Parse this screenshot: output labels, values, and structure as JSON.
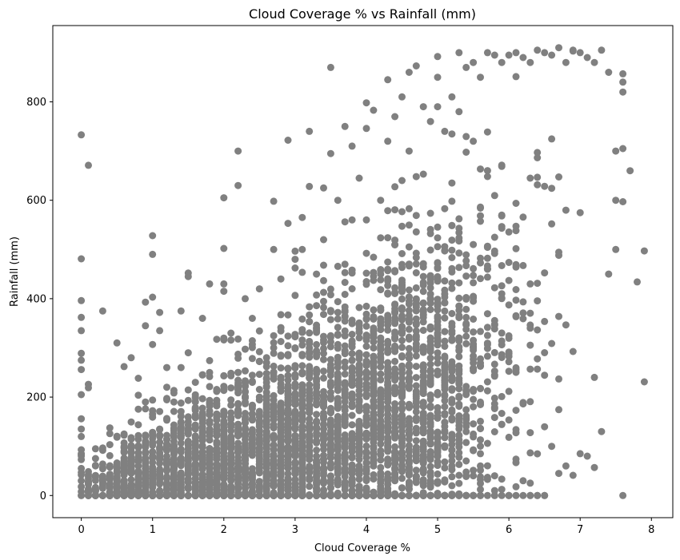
{
  "chart_data": {
    "type": "scatter",
    "title": "Cloud Coverage % vs Rainfall (mm)",
    "xlabel": "Cloud Coverage %",
    "ylabel": "Rainfall (mm)",
    "xlim": [
      -0.4,
      8.3
    ],
    "ylim": [
      -45,
      955
    ],
    "xticks": [
      0,
      1,
      2,
      3,
      4,
      5,
      6,
      7,
      8
    ],
    "yticks": [
      0,
      200,
      400,
      600,
      800
    ],
    "point_color": "#808080",
    "grid": false,
    "series": [
      {
        "points": [
          [
            0,
            733
          ],
          [
            0.1,
            671
          ],
          [
            0,
            481
          ],
          [
            0,
            396
          ],
          [
            0,
            362
          ],
          [
            0,
            335
          ],
          [
            0,
            289
          ],
          [
            0,
            275
          ],
          [
            0,
            256
          ],
          [
            0.1,
            226
          ],
          [
            0.1,
            219
          ],
          [
            0,
            205
          ],
          [
            0,
            156
          ],
          [
            0,
            135
          ],
          [
            0,
            120
          ],
          [
            0,
            93
          ],
          [
            0,
            83
          ],
          [
            0,
            73
          ],
          [
            0,
            55
          ],
          [
            0,
            42
          ],
          [
            0,
            30
          ],
          [
            0,
            18
          ],
          [
            0,
            8
          ],
          [
            0,
            0
          ],
          [
            0.1,
            0
          ],
          [
            0.2,
            10
          ],
          [
            0.3,
            0
          ],
          [
            0.3,
            27
          ],
          [
            0.3,
            375
          ],
          [
            0.4,
            33
          ],
          [
            0.5,
            310
          ],
          [
            0.5,
            18
          ],
          [
            0.6,
            262
          ],
          [
            0.6,
            90
          ],
          [
            0.6,
            50
          ],
          [
            0.7,
            280
          ],
          [
            0.7,
            10
          ],
          [
            0.8,
            100
          ],
          [
            0.8,
            60
          ],
          [
            0.9,
            190
          ],
          [
            0.9,
            120
          ],
          [
            0.9,
            0
          ],
          [
            0.9,
            345
          ],
          [
            0.9,
            393
          ],
          [
            1,
            490
          ],
          [
            1,
            528
          ],
          [
            1,
            403
          ],
          [
            1,
            307
          ],
          [
            1,
            165
          ],
          [
            1,
            80
          ],
          [
            1,
            30
          ],
          [
            1.1,
            372
          ],
          [
            1.1,
            335
          ],
          [
            1.1,
            120
          ],
          [
            1.2,
            260
          ],
          [
            1.2,
            50
          ],
          [
            1.3,
            190
          ],
          [
            1.3,
            100
          ],
          [
            1.4,
            375
          ],
          [
            1.4,
            260
          ],
          [
            1.4,
            20
          ],
          [
            1.5,
            445
          ],
          [
            1.5,
            452
          ],
          [
            1.5,
            290
          ],
          [
            1.5,
            150
          ],
          [
            1.6,
            230
          ],
          [
            1.7,
            360
          ],
          [
            1.7,
            80
          ],
          [
            1.8,
            430
          ],
          [
            1.8,
            250
          ],
          [
            1.9,
            165
          ],
          [
            1.9,
            40
          ],
          [
            2,
            605
          ],
          [
            2,
            502
          ],
          [
            2,
            430
          ],
          [
            2,
            415
          ],
          [
            2,
            320
          ],
          [
            2,
            150
          ],
          [
            2,
            60
          ],
          [
            2.1,
            330
          ],
          [
            2.2,
            700
          ],
          [
            2.2,
            630
          ],
          [
            2.2,
            250
          ],
          [
            2.3,
            400
          ],
          [
            2.3,
            120
          ],
          [
            2.4,
            360
          ],
          [
            2.5,
            420
          ],
          [
            2.5,
            200
          ],
          [
            2.6,
            280
          ],
          [
            2.7,
            598
          ],
          [
            2.7,
            500
          ],
          [
            2.8,
            440
          ],
          [
            2.9,
            553
          ],
          [
            2.9,
            722
          ],
          [
            3,
            480
          ],
          [
            3,
            300
          ],
          [
            3,
            100
          ],
          [
            3.1,
            565
          ],
          [
            3.1,
            500
          ],
          [
            3.2,
            628
          ],
          [
            3.2,
            740
          ],
          [
            3.3,
            450
          ],
          [
            3.4,
            625
          ],
          [
            3.4,
            520
          ],
          [
            3.5,
            695
          ],
          [
            3.5,
            870
          ],
          [
            3.6,
            600
          ],
          [
            3.7,
            750
          ],
          [
            3.7,
            470
          ],
          [
            3.8,
            710
          ],
          [
            3.8,
            560
          ],
          [
            3.9,
            645
          ],
          [
            4,
            798
          ],
          [
            4,
            560
          ],
          [
            4.1,
            783
          ],
          [
            4.2,
            600
          ],
          [
            4.3,
            845
          ],
          [
            4.3,
            720
          ],
          [
            4.4,
            770
          ],
          [
            4.5,
            810
          ],
          [
            4.5,
            640
          ],
          [
            4.6,
            860
          ],
          [
            4.6,
            700
          ],
          [
            4.7,
            873
          ],
          [
            4.8,
            790
          ],
          [
            4.9,
            760
          ],
          [
            5,
            892
          ],
          [
            5,
            850
          ],
          [
            5,
            790
          ],
          [
            5.1,
            740
          ],
          [
            5.2,
            810
          ],
          [
            5.3,
            900
          ],
          [
            5.3,
            780
          ],
          [
            5.4,
            870
          ],
          [
            5.5,
            880
          ],
          [
            5.5,
            720
          ],
          [
            5.6,
            850
          ],
          [
            5.7,
            900
          ],
          [
            5.8,
            895
          ],
          [
            5.9,
            880
          ],
          [
            6,
            895
          ],
          [
            6.1,
            900
          ],
          [
            6.2,
            890
          ],
          [
            6.3,
            880
          ],
          [
            6.4,
            905
          ],
          [
            6.5,
            900
          ],
          [
            6.6,
            895
          ],
          [
            6.7,
            910
          ],
          [
            6.8,
            880
          ],
          [
            6.9,
            905
          ],
          [
            7,
            900
          ],
          [
            7.1,
            890
          ],
          [
            7.2,
            880
          ],
          [
            7.3,
            905
          ],
          [
            7.4,
            860
          ],
          [
            7.5,
            700
          ],
          [
            7.5,
            600
          ],
          [
            7.6,
            857
          ],
          [
            7.6,
            840
          ],
          [
            7.6,
            820
          ],
          [
            7.6,
            705
          ],
          [
            7.6,
            597
          ],
          [
            7.6,
            0
          ],
          [
            7.7,
            660
          ],
          [
            7.8,
            434
          ],
          [
            7.9,
            497
          ],
          [
            7.9,
            231
          ],
          [
            7.5,
            500
          ],
          [
            7.4,
            450
          ],
          [
            7.2,
            240
          ],
          [
            7.2,
            57
          ],
          [
            7.3,
            130
          ],
          [
            7.1,
            80
          ],
          [
            7.0,
            85
          ],
          [
            6.7,
            45
          ],
          [
            6.5,
            0
          ],
          [
            6.4,
            0
          ],
          [
            6.3,
            0
          ],
          [
            6.2,
            0
          ],
          [
            6.0,
            0
          ],
          [
            5.9,
            0
          ],
          [
            5.8,
            10
          ],
          [
            5.7,
            0
          ],
          [
            5.5,
            0
          ],
          [
            5.3,
            0
          ],
          [
            5.2,
            20
          ],
          [
            5.1,
            0
          ],
          [
            5,
            0
          ],
          [
            4.9,
            0
          ],
          [
            4.7,
            0
          ],
          [
            4.5,
            0
          ],
          [
            4.3,
            0
          ],
          [
            4.0,
            0
          ],
          [
            3.8,
            0
          ],
          [
            3.5,
            0
          ],
          [
            3.2,
            0
          ],
          [
            2.9,
            0
          ],
          [
            2.6,
            0
          ],
          [
            2.3,
            0
          ],
          [
            2.0,
            0
          ],
          [
            1.7,
            0
          ],
          [
            1.4,
            0
          ],
          [
            1.2,
            0
          ],
          [
            6.8,
            60
          ],
          [
            6.6,
            100
          ],
          [
            6.2,
            30
          ],
          [
            5.8,
            40
          ],
          [
            5.6,
            60
          ],
          [
            5.4,
            40
          ],
          [
            5.2,
            60
          ],
          [
            4.8,
            50
          ],
          [
            4.6,
            80
          ],
          [
            4.4,
            30
          ]
        ]
      }
    ]
  }
}
